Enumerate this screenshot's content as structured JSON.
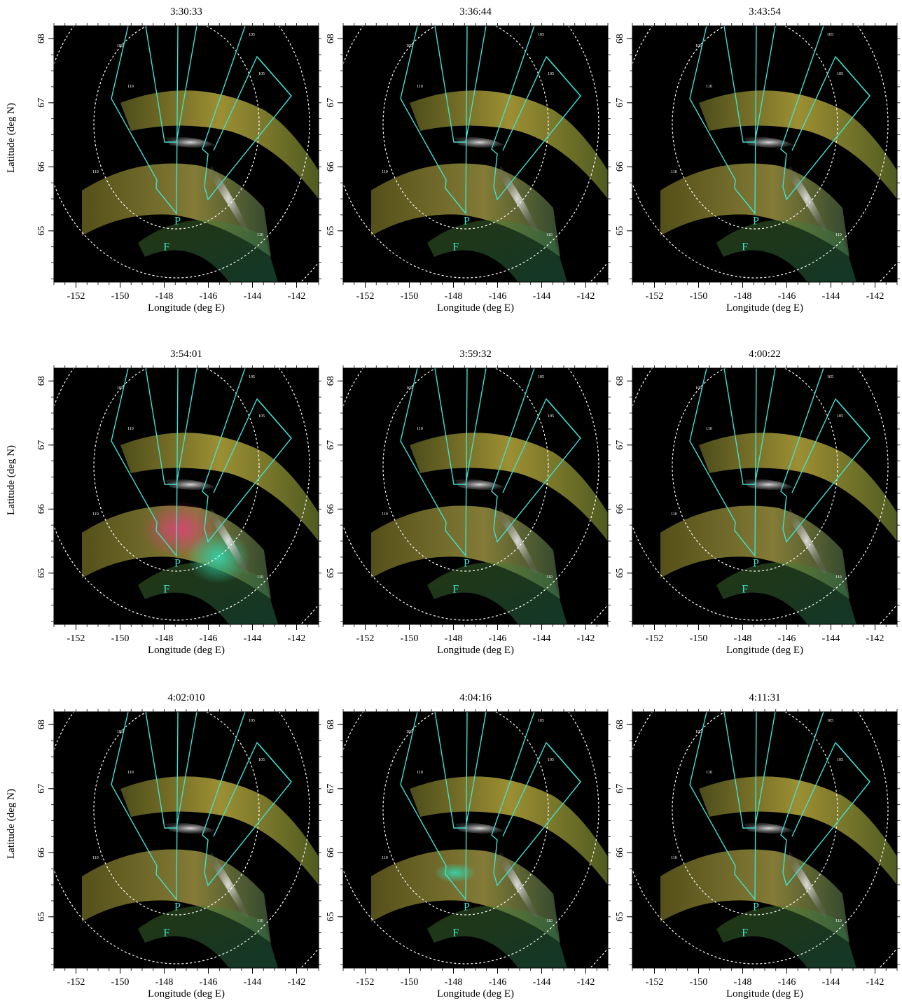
{
  "figure": {
    "ylabel": "Latitude (deg N)",
    "xlabel": "Longitude (deg E)"
  },
  "chart_data": {
    "type": "heatmap",
    "xlabel": "Longitude (deg E)",
    "ylabel": "Latitude (deg N)",
    "xlim": [
      -153,
      -141
    ],
    "ylim": [
      64.2,
      68.2
    ],
    "xticks": [
      -152,
      -150,
      -148,
      -146,
      -144,
      -142
    ],
    "xtick_labels": [
      "-152",
      "-150",
      "-148",
      "-146",
      "-144",
      "-142"
    ],
    "yticks": [
      65,
      66,
      67,
      68
    ],
    "ytick_labels": [
      "65",
      "66",
      "67",
      "68"
    ],
    "markers": [
      {
        "label": "P",
        "lon": -147.4,
        "lat": 65.1
      },
      {
        "label": "F",
        "lon": -147.9,
        "lat": 64.7
      }
    ],
    "contour_labels": [
      "105",
      "110"
    ],
    "colors": {
      "beams": "#40e0d0",
      "markers": "#40e0d0",
      "contours": "#ffffff",
      "background": "#000000"
    },
    "panels": [
      {
        "title": "3:30:33"
      },
      {
        "title": "3:36:44"
      },
      {
        "title": "3:43:54"
      },
      {
        "title": "3:54:01"
      },
      {
        "title": "3:59:32"
      },
      {
        "title": "4:00:22"
      },
      {
        "title": "4:02:010"
      },
      {
        "title": "4:04:16"
      },
      {
        "title": "4:11:31"
      }
    ]
  }
}
